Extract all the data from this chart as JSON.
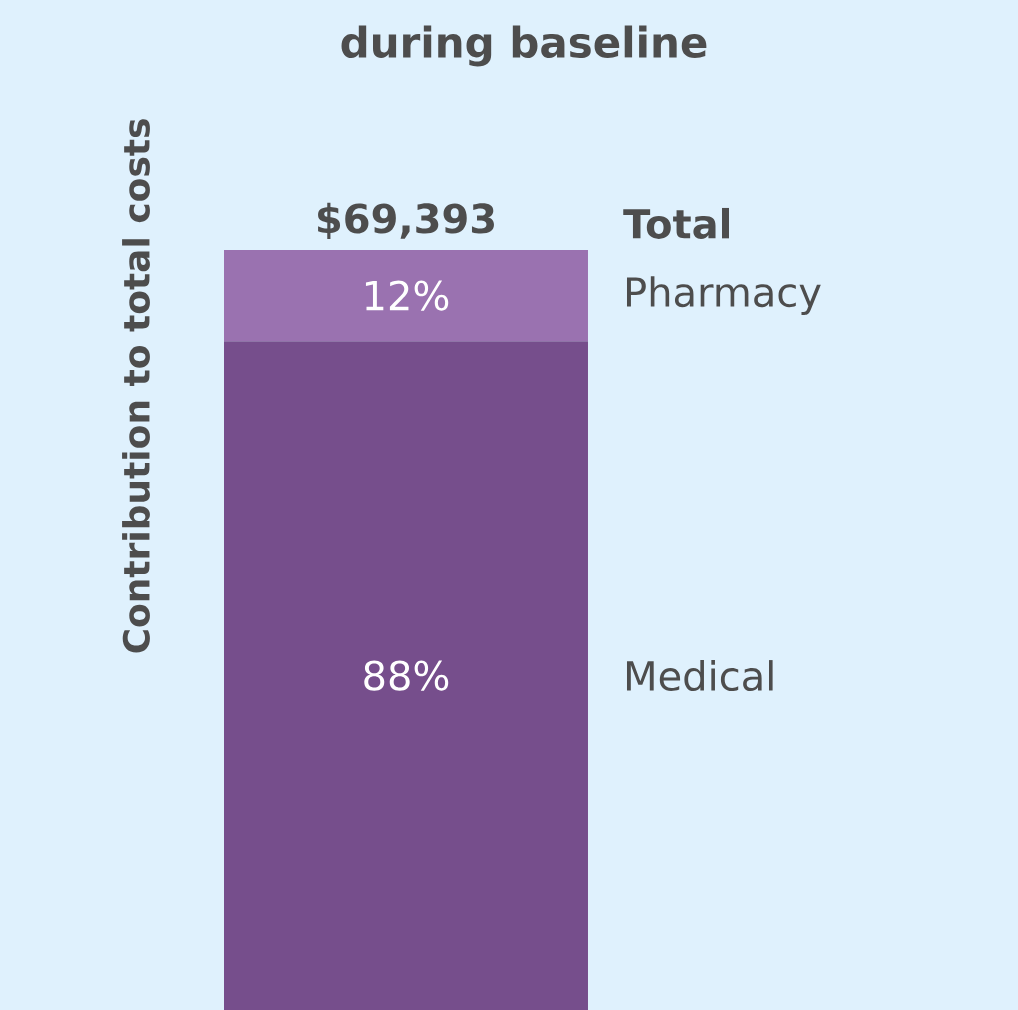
{
  "chart_data": {
    "type": "bar",
    "title": "during baseline",
    "ylabel": "Contribution to total costs",
    "legend_title": "Total",
    "categories": [
      null
    ],
    "stacked": true,
    "annotations": [
      "$69,393"
    ],
    "series": [
      {
        "name": "Medical",
        "color": "#764e8c",
        "values": [
          88
        ],
        "value_labels": [
          "88%"
        ]
      },
      {
        "name": "Pharmacy",
        "color": "#9a72b0",
        "values": [
          12
        ],
        "value_labels": [
          "12%"
        ]
      }
    ]
  }
}
